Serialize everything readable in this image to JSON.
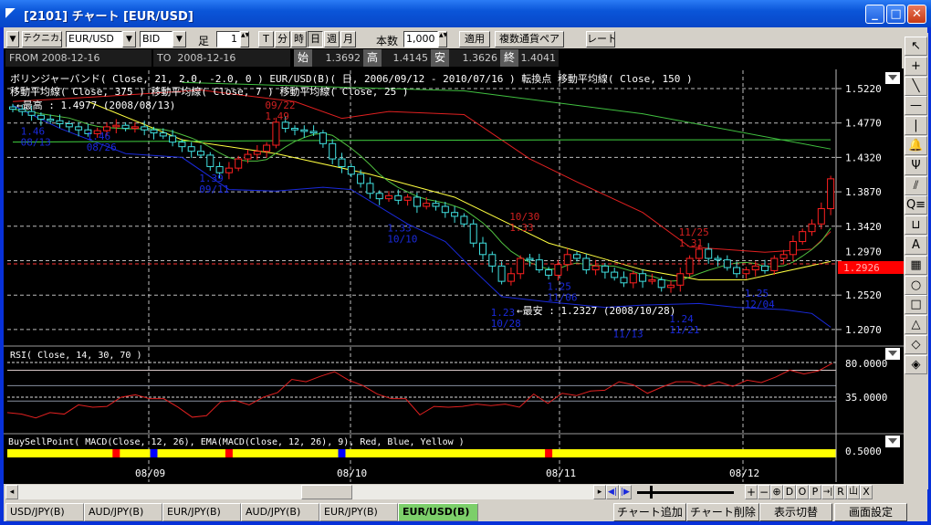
{
  "window": {
    "title": "[2101] チャート [EUR/USD]",
    "minimize": "_",
    "maximize": "□",
    "close": "✕"
  },
  "toolbar": {
    "menu": "▼",
    "technical": "テクニカル",
    "symbol": "EUR/USD",
    "price_type": "BID",
    "bar_label": "足",
    "bar_value": "1",
    "periods": [
      "T",
      "分",
      "時",
      "日",
      "週",
      "月"
    ],
    "active_period": "日",
    "count_label": "本数",
    "count_value": "1,000",
    "apply": "適用",
    "multi_pair": "複数通貨ペア",
    "rate": "レート",
    "dropdown": "▼",
    "spin": "▲▼"
  },
  "info": {
    "from_label": "FROM",
    "from": "2008-12-16",
    "to_label": "TO",
    "to": "2008-12-16",
    "open_label": "始",
    "open": "1.3692",
    "high_label": "高",
    "high": "1.4145",
    "low_label": "安",
    "low": "1.3626",
    "close_label": "終",
    "close": "1.4041"
  },
  "main_panel": {
    "legend_line1": "ボリンジャーバンド( Close, 21, 2.0, -2.0, 0 )   EUR/USD(B)( 日, 2006/09/12 - 2010/07/16 )   転換点   移動平均線( Close, 150 )",
    "legend_line2": "移動平均線( Close, 375 )   移動平均線( Close, 7 )   移動平均線( Close, 25 )",
    "highest": "←最高 : 1.4977 (2008/08/13)",
    "lowest": "←最安 : 1.2327 (2008/10/28)",
    "current_price": "1.2926",
    "y_ticks": [
      "1.5220",
      "1.4770",
      "1.4320",
      "1.3870",
      "1.3420",
      "1.2970",
      "1.2520",
      "1.2070"
    ],
    "colors": {
      "up": "#ff2020",
      "down": "#40e0e0",
      "bb_upper": "#e02020",
      "bb_lower": "#1a2adc",
      "ma7": "#50c040",
      "ma25": "#ffff40",
      "ma150": "#40d040",
      "ma375": "#40c040",
      "current": "#ff0000"
    }
  },
  "rsi_panel": {
    "legend": "RSI( Close, 14, 30, 70 )",
    "y_ticks": [
      "80.0000",
      "35.0000"
    ],
    "color": "#e02020"
  },
  "bsp_panel": {
    "legend": "BuySellPoint( MACD(Close, 12, 26), EMA(MACD(Close, 12, 26), 9), Red, Blue, Yellow )",
    "y_tick": "0.5000",
    "colors": {
      "base": "#ffff00",
      "sell": "#ff0000",
      "buy": "#0000ff"
    }
  },
  "x_ticks": [
    "08/09",
    "08/10",
    "08/11",
    "08/12"
  ],
  "chart_data": {
    "type": "candlestick",
    "ylim": [
      1.19,
      1.535
    ],
    "closes": [
      1.495,
      1.492,
      1.487,
      1.482,
      1.48,
      1.476,
      1.472,
      1.468,
      1.463,
      1.467,
      1.472,
      1.474,
      1.47,
      1.472,
      1.468,
      1.464,
      1.46,
      1.452,
      1.446,
      1.44,
      1.435,
      1.42,
      1.412,
      1.418,
      1.43,
      1.436,
      1.44,
      1.448,
      1.478,
      1.47,
      1.468,
      1.466,
      1.464,
      1.45,
      1.43,
      1.42,
      1.41,
      1.398,
      1.385,
      1.378,
      1.382,
      1.376,
      1.38,
      1.368,
      1.372,
      1.368,
      1.36,
      1.355,
      1.345,
      1.32,
      1.305,
      1.29,
      1.27,
      1.28,
      1.3,
      1.298,
      1.285,
      1.278,
      1.292,
      1.305,
      1.3,
      1.285,
      1.29,
      1.282,
      1.275,
      1.268,
      1.28,
      1.27,
      1.272,
      1.262,
      1.265,
      1.28,
      1.3,
      1.312,
      1.3,
      1.298,
      1.288,
      1.28,
      1.285,
      1.29,
      1.284,
      1.3,
      1.305,
      1.322,
      1.335,
      1.345,
      1.365,
      1.404
    ],
    "overlays": [
      {
        "key": "bb_upper",
        "at": [
          0,
          10,
          20,
          30,
          35,
          40,
          48,
          55,
          60,
          67,
          72,
          80,
          85,
          87
        ],
        "values": [
          1.505,
          1.512,
          1.52,
          1.505,
          1.483,
          1.492,
          1.488,
          1.43,
          1.4,
          1.36,
          1.315,
          1.308,
          1.312,
          1.335
        ]
      },
      {
        "key": "bb_lower",
        "at": [
          0,
          5,
          12,
          18,
          23,
          28,
          33,
          36,
          42,
          46,
          49,
          52,
          57,
          63,
          67,
          73,
          77,
          82,
          85,
          87
        ],
        "values": [
          1.5,
          1.47,
          1.437,
          1.432,
          1.39,
          1.388,
          1.393,
          1.39,
          1.345,
          1.322,
          1.285,
          1.25,
          1.243,
          1.236,
          1.239,
          1.241,
          1.236,
          1.233,
          1.228,
          1.21
        ]
      },
      {
        "key": "ma25",
        "at": [
          8,
          18,
          28,
          38,
          47,
          57,
          67,
          73,
          78,
          87
        ],
        "values": [
          1.505,
          1.455,
          1.437,
          1.41,
          1.38,
          1.32,
          1.285,
          1.272,
          1.272,
          1.296
        ]
      },
      {
        "key": "ma150",
        "at": [
          0,
          30,
          60,
          87
        ],
        "values": [
          1.452,
          1.454,
          1.455,
          1.455
        ]
      },
      {
        "key": "ma375",
        "at": [
          18,
          48,
          67,
          87
        ],
        "values": [
          1.53,
          1.519,
          1.489,
          1.443
        ]
      }
    ],
    "annotations": [
      {
        "text": [
          "09/22",
          "1.49"
        ],
        "index": 28,
        "price": 1.505,
        "color": "#d02020"
      },
      {
        "text": [
          "1.46",
          "08/13"
        ],
        "index": 2,
        "price": 1.462,
        "color": "#1a2adc"
      },
      {
        "text": [
          "1.46",
          "08/26"
        ],
        "index": 9,
        "price": 1.455,
        "color": "#1a2adc"
      },
      {
        "text": [
          "1.39",
          "09/11"
        ],
        "index": 21,
        "price": 1.4,
        "color": "#1a2adc"
      },
      {
        "text": [
          "1.33",
          "10/10"
        ],
        "index": 41,
        "price": 1.335,
        "color": "#1a2adc"
      },
      {
        "text": [
          "10/30",
          "1.33"
        ],
        "index": 54,
        "price": 1.35,
        "color": "#d02020"
      },
      {
        "text": [
          "1.23",
          "10/28"
        ],
        "index": 52,
        "price": 1.225,
        "color": "#1a2adc"
      },
      {
        "text": [
          "1.25",
          "11/06"
        ],
        "index": 58,
        "price": 1.248,
        "color": "#1a2adc"
      },
      {
        "text": [
          "",
          "11/13"
        ],
        "index": 65,
        "price": 1.222,
        "color": "#1a2adc"
      },
      {
        "text": [
          "1.24",
          "11/21"
        ],
        "index": 71,
        "price": 1.232,
        "color": "#1a2adc"
      },
      {
        "text": [
          "11/25",
          "1.31"
        ],
        "index": 72,
        "price": 1.33,
        "color": "#d02020"
      },
      {
        "text": [
          "1.25",
          "12/04"
        ],
        "index": 79,
        "price": 1.25,
        "color": "#1a2adc"
      }
    ],
    "rsi": [
      15,
      13,
      8,
      15,
      13,
      25,
      22,
      23,
      35,
      38,
      33,
      33,
      22,
      9,
      11,
      29,
      31,
      25,
      35,
      41,
      58,
      55,
      62,
      68,
      57,
      50,
      39,
      33,
      33,
      12,
      23,
      22,
      23,
      26,
      24,
      26,
      22,
      39,
      27,
      40,
      37,
      43,
      44,
      55,
      51,
      40,
      48,
      55,
      55,
      49,
      55,
      49,
      57,
      54,
      61,
      70,
      65,
      69,
      79
    ],
    "rsi_levels": [
      70,
      50,
      30
    ],
    "rsi_ylim": [
      0,
      100
    ],
    "signals": [
      {
        "index": 11,
        "type": "sell"
      },
      {
        "index": 15,
        "type": "buy"
      },
      {
        "index": 23,
        "type": "sell"
      },
      {
        "index": 35,
        "type": "buy"
      },
      {
        "index": 57,
        "type": "sell"
      }
    ]
  },
  "palette": [
    "↖",
    "+",
    "╲",
    "—",
    "|",
    "🔔",
    "Ψ",
    "⫽",
    "Q≡",
    "⊔",
    "A",
    "▦",
    "○",
    "□",
    "△",
    "◇",
    "◈"
  ],
  "scroll": {
    "left": "◂",
    "right": "▸",
    "nav_prev": "◀|",
    "nav_next": "|▶",
    "zoom_in": "+",
    "zoom_out": "−",
    "zoom": "⊕",
    "d": "D",
    "o": "O",
    "p": "P",
    "end": "→|",
    "r": "R",
    "auto": "山",
    "x": "X"
  },
  "tabs": [
    "USD/JPY(B)",
    "AUD/JPY(B)",
    "EUR/JPY(B)",
    "AUD/JPY(B)",
    "EUR/JPY(B)",
    "EUR/USD(B)"
  ],
  "active_tab": "EUR/USD(B)",
  "actions": {
    "add_chart": "チャート追加",
    "delete_chart": "チャート削除",
    "toggle_view": "表示切替",
    "screen_settings": "画面設定"
  }
}
